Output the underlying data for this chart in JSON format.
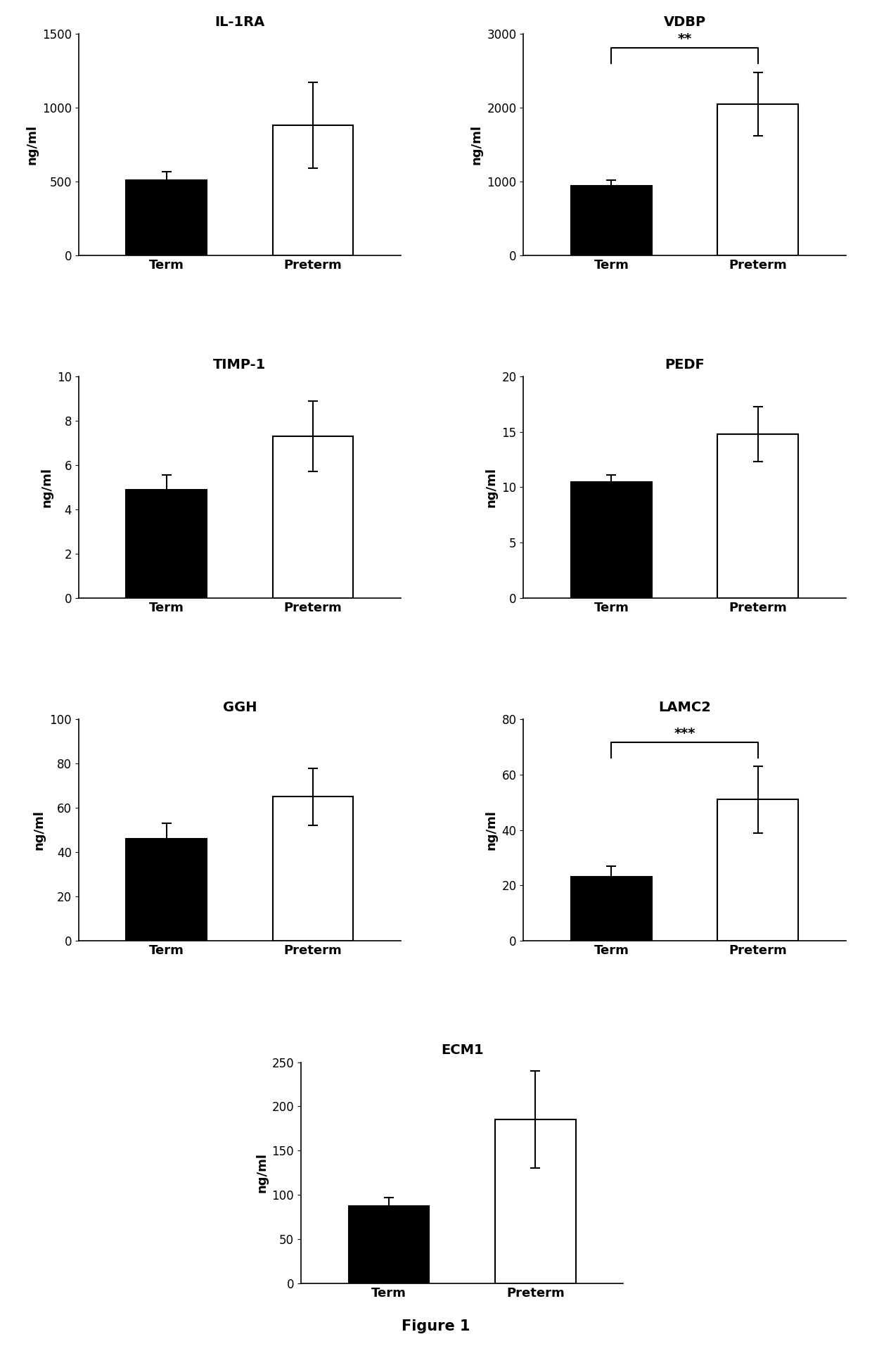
{
  "panels": [
    {
      "title": "IL-1RA",
      "ylabel": "ng/ml",
      "ylim": [
        0,
        1500
      ],
      "yticks": [
        0,
        500,
        1000,
        1500
      ],
      "term_val": 510,
      "term_err": 55,
      "preterm_val": 880,
      "preterm_err": 290,
      "sig": null
    },
    {
      "title": "VDBP",
      "ylabel": "ng/ml",
      "ylim": [
        0,
        3000
      ],
      "yticks": [
        0,
        1000,
        2000,
        3000
      ],
      "term_val": 940,
      "term_err": 80,
      "preterm_val": 2050,
      "preterm_err": 430,
      "sig": "**"
    },
    {
      "title": "TIMP-1",
      "ylabel": "ng/ml",
      "ylim": [
        0,
        10
      ],
      "yticks": [
        0,
        2,
        4,
        6,
        8,
        10
      ],
      "term_val": 4.9,
      "term_err": 0.65,
      "preterm_val": 7.3,
      "preterm_err": 1.6,
      "sig": null
    },
    {
      "title": "PEDF",
      "ylabel": "ng/ml",
      "ylim": [
        0,
        20
      ],
      "yticks": [
        0,
        5,
        10,
        15,
        20
      ],
      "term_val": 10.5,
      "term_err": 0.6,
      "preterm_val": 14.8,
      "preterm_err": 2.5,
      "sig": null
    },
    {
      "title": "GGH",
      "ylabel": "ng/ml",
      "ylim": [
        0,
        100
      ],
      "yticks": [
        0,
        20,
        40,
        60,
        80,
        100
      ],
      "term_val": 46,
      "term_err": 7,
      "preterm_val": 65,
      "preterm_err": 13,
      "sig": null
    },
    {
      "title": "LAMC2",
      "ylabel": "ng/ml",
      "ylim": [
        0,
        80
      ],
      "yticks": [
        0,
        20,
        40,
        60,
        80
      ],
      "term_val": 23,
      "term_err": 4,
      "preterm_val": 51,
      "preterm_err": 12,
      "sig": "***"
    },
    {
      "title": "ECM1",
      "ylabel": "ng/ml",
      "ylim": [
        0,
        250
      ],
      "yticks": [
        0,
        50,
        100,
        150,
        200,
        250
      ],
      "term_val": 87,
      "term_err": 10,
      "preterm_val": 185,
      "preterm_err": 55,
      "sig": null
    }
  ],
  "bar_width": 0.55,
  "term_color": "#000000",
  "preterm_color": "#ffffff",
  "bar_edge_color": "#000000",
  "bar_lw": 1.5,
  "error_capsize": 5,
  "error_lw": 1.5,
  "xlabel_fontsize": 13,
  "ylabel_fontsize": 13,
  "title_fontsize": 14,
  "tick_fontsize": 12,
  "fig_caption": "Figure 1",
  "background_color": "#ffffff"
}
